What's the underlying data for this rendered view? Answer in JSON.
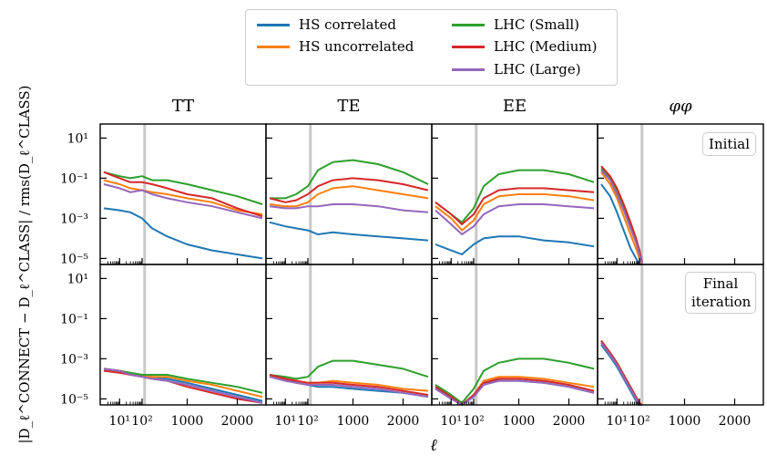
{
  "legend": {
    "items": [
      {
        "label": "HS correlated",
        "color": "#1f77b4"
      },
      {
        "label": "HS uncorrelated",
        "color": "#ff7f0e"
      },
      {
        "label": "LHC (Small)",
        "color": "#2ca02c"
      },
      {
        "label": "LHC (Medium)",
        "color": "#d62728"
      },
      {
        "label": "LHC (Large)",
        "color": "#9467bd"
      }
    ]
  },
  "columns": [
    "TT",
    "TE",
    "EE",
    "φφ"
  ],
  "row_labels": [
    "Initial",
    "Final iteration"
  ],
  "ylabel": "|D_ℓ^CONNECT − D_ℓ^CLASS| / rms(D_ℓ^CLASS)",
  "xlabel": "ℓ",
  "chart_data": {
    "type": "line",
    "layout_grid": "2 rows x 4 columns",
    "x_scale": "log below 100, linear above",
    "x_ticks": [
      "10¹",
      "10²",
      "1000",
      "2000"
    ],
    "y_scale": "log",
    "y_ticks": [
      "10⁻⁵",
      "10⁻³",
      "10⁻¹",
      "10¹"
    ],
    "ylim_log10": [
      -5.3,
      1.7
    ],
    "vertical_marker_ell": 150,
    "panels": [
      {
        "row": "Initial",
        "col": "TT",
        "x": [
          2,
          10,
          30,
          100,
          300,
          600,
          1000,
          1500,
          2000,
          2500
        ],
        "series": [
          {
            "name": "HS correlated",
            "log10y": [
              -2.5,
              -2.6,
              -2.7,
              -3.0,
              -3.5,
              -3.9,
              -4.3,
              -4.6,
              -4.8,
              -5.0
            ]
          },
          {
            "name": "HS uncorrelated",
            "log10y": [
              -1.1,
              -1.3,
              -1.5,
              -1.6,
              -1.7,
              -1.8,
              -2.0,
              -2.2,
              -2.6,
              -2.8
            ]
          },
          {
            "name": "LHC (Small)",
            "log10y": [
              -0.7,
              -0.9,
              -1.0,
              -0.9,
              -1.1,
              -1.1,
              -1.3,
              -1.6,
              -1.9,
              -2.3
            ]
          },
          {
            "name": "LHC (Medium)",
            "log10y": [
              -0.7,
              -1.0,
              -1.2,
              -1.2,
              -1.3,
              -1.5,
              -1.8,
              -2.0,
              -2.5,
              -2.9
            ]
          },
          {
            "name": "LHC (Large)",
            "log10y": [
              -1.3,
              -1.5,
              -1.7,
              -1.6,
              -1.8,
              -2.0,
              -2.2,
              -2.4,
              -2.7,
              -3.0
            ]
          }
        ]
      },
      {
        "row": "Initial",
        "col": "TE",
        "x": [
          2,
          10,
          30,
          100,
          300,
          600,
          1000,
          1500,
          2000,
          2500
        ],
        "series": [
          {
            "name": "HS correlated",
            "log10y": [
              -3.2,
              -3.4,
              -3.5,
              -3.6,
              -3.8,
              -3.7,
              -3.8,
              -3.9,
              -4.0,
              -4.1
            ]
          },
          {
            "name": "HS uncorrelated",
            "log10y": [
              -2.3,
              -2.4,
              -2.4,
              -2.2,
              -1.8,
              -1.5,
              -1.4,
              -1.6,
              -1.8,
              -2.0
            ]
          },
          {
            "name": "LHC (Small)",
            "log10y": [
              -2.0,
              -2.0,
              -1.8,
              -1.4,
              -0.6,
              -0.2,
              -0.1,
              -0.3,
              -0.7,
              -1.3
            ]
          },
          {
            "name": "LHC (Medium)",
            "log10y": [
              -2.0,
              -2.2,
              -2.1,
              -1.8,
              -1.4,
              -1.1,
              -1.0,
              -1.1,
              -1.3,
              -1.6
            ]
          },
          {
            "name": "LHC (Large)",
            "log10y": [
              -2.4,
              -2.5,
              -2.5,
              -2.4,
              -2.4,
              -2.3,
              -2.3,
              -2.4,
              -2.6,
              -2.7
            ]
          }
        ]
      },
      {
        "row": "Initial",
        "col": "EE",
        "x": [
          2,
          10,
          30,
          100,
          300,
          600,
          1000,
          1500,
          2000,
          2500
        ],
        "series": [
          {
            "name": "HS correlated",
            "log10y": [
              -4.3,
              -4.6,
              -4.8,
              -4.3,
              -4.0,
              -3.9,
              -3.9,
              -4.1,
              -4.2,
              -4.4
            ]
          },
          {
            "name": "HS uncorrelated",
            "log10y": [
              -2.4,
              -3.0,
              -3.6,
              -3.1,
              -2.3,
              -1.9,
              -1.8,
              -1.8,
              -1.9,
              -2.1
            ]
          },
          {
            "name": "LHC (Small)",
            "log10y": [
              -2.2,
              -2.8,
              -3.2,
              -2.5,
              -1.4,
              -0.8,
              -0.6,
              -0.6,
              -0.8,
              -1.2
            ]
          },
          {
            "name": "LHC (Medium)",
            "log10y": [
              -2.2,
              -2.8,
              -3.3,
              -2.8,
              -2.0,
              -1.6,
              -1.5,
              -1.5,
              -1.6,
              -1.7
            ]
          },
          {
            "name": "LHC (Large)",
            "log10y": [
              -2.6,
              -3.3,
              -3.8,
              -3.4,
              -2.8,
              -2.4,
              -2.3,
              -2.3,
              -2.4,
              -2.5
            ]
          }
        ]
      },
      {
        "row": "Initial",
        "col": "φφ",
        "x": [
          2,
          5,
          10,
          20,
          40,
          70,
          100,
          150
        ],
        "series": [
          {
            "name": "HS correlated",
            "log10y": [
              -1.3,
              -1.9,
              -2.7,
              -3.6,
              -4.5,
              -5.0,
              -5.3,
              -5.3
            ]
          },
          {
            "name": "HS uncorrelated",
            "log10y": [
              -0.7,
              -1.3,
              -2.0,
              -2.9,
              -3.8,
              -4.5,
              -5.0,
              -5.3
            ]
          },
          {
            "name": "LHC (Small)",
            "log10y": [
              -0.5,
              -1.0,
              -1.6,
              -2.4,
              -3.3,
              -4.0,
              -4.6,
              -5.2
            ]
          },
          {
            "name": "LHC (Medium)",
            "log10y": [
              -0.4,
              -0.9,
              -1.5,
              -2.3,
              -3.2,
              -4.0,
              -4.6,
              -5.2
            ]
          },
          {
            "name": "LHC (Large)",
            "log10y": [
              -0.6,
              -1.1,
              -1.8,
              -2.6,
              -3.5,
              -4.2,
              -4.8,
              -5.3
            ]
          }
        ]
      },
      {
        "row": "Final iteration",
        "col": "TT",
        "x": [
          2,
          10,
          30,
          100,
          300,
          600,
          1000,
          1500,
          2000,
          2500
        ],
        "series": [
          {
            "name": "HS correlated",
            "log10y": [
              -3.5,
              -3.6,
              -3.7,
              -3.8,
              -3.9,
              -4.0,
              -4.2,
              -4.5,
              -4.8,
              -5.1
            ]
          },
          {
            "name": "HS uncorrelated",
            "log10y": [
              -3.5,
              -3.6,
              -3.7,
              -3.8,
              -3.9,
              -3.9,
              -4.1,
              -4.3,
              -4.6,
              -4.9
            ]
          },
          {
            "name": "LHC (Small)",
            "log10y": [
              -3.5,
              -3.6,
              -3.7,
              -3.8,
              -3.8,
              -3.8,
              -4.0,
              -4.2,
              -4.4,
              -4.7
            ]
          },
          {
            "name": "LHC (Medium)",
            "log10y": [
              -3.6,
              -3.7,
              -3.8,
              -3.9,
              -4.0,
              -4.1,
              -4.4,
              -4.7,
              -5.0,
              -5.2
            ]
          },
          {
            "name": "LHC (Large)",
            "log10y": [
              -3.5,
              -3.6,
              -3.8,
              -3.9,
              -4.0,
              -4.1,
              -4.3,
              -4.6,
              -4.9,
              -5.2
            ]
          }
        ]
      },
      {
        "row": "Final iteration",
        "col": "TE",
        "x": [
          2,
          10,
          30,
          100,
          300,
          600,
          1000,
          1500,
          2000,
          2500
        ],
        "series": [
          {
            "name": "HS correlated",
            "log10y": [
              -3.8,
              -4.0,
              -4.2,
              -4.3,
              -4.4,
              -4.4,
              -4.5,
              -4.6,
              -4.7,
              -4.9
            ]
          },
          {
            "name": "HS uncorrelated",
            "log10y": [
              -3.8,
              -4.0,
              -4.1,
              -4.2,
              -4.2,
              -4.1,
              -4.2,
              -4.3,
              -4.5,
              -4.6
            ]
          },
          {
            "name": "LHC (Small)",
            "log10y": [
              -3.8,
              -3.9,
              -4.0,
              -3.9,
              -3.4,
              -3.1,
              -3.1,
              -3.3,
              -3.5,
              -3.9
            ]
          },
          {
            "name": "LHC (Medium)",
            "log10y": [
              -3.8,
              -4.0,
              -4.1,
              -4.2,
              -4.2,
              -4.2,
              -4.3,
              -4.4,
              -4.6,
              -4.8
            ]
          },
          {
            "name": "LHC (Large)",
            "log10y": [
              -3.9,
              -4.1,
              -4.2,
              -4.3,
              -4.3,
              -4.3,
              -4.4,
              -4.5,
              -4.7,
              -4.9
            ]
          }
        ]
      },
      {
        "row": "Final iteration",
        "col": "EE",
        "x": [
          2,
          10,
          30,
          100,
          300,
          600,
          1000,
          1500,
          2000,
          2500
        ],
        "series": [
          {
            "name": "HS correlated",
            "log10y": [
              -4.4,
              -4.9,
              -5.3,
              -4.8,
              -4.2,
              -4.1,
              -4.1,
              -4.2,
              -4.4,
              -4.7
            ]
          },
          {
            "name": "HS uncorrelated",
            "log10y": [
              -4.4,
              -4.9,
              -5.3,
              -4.8,
              -4.1,
              -3.9,
              -3.9,
              -4.0,
              -4.2,
              -4.4
            ]
          },
          {
            "name": "LHC (Small)",
            "log10y": [
              -4.3,
              -4.8,
              -5.2,
              -4.5,
              -3.6,
              -3.2,
              -3.0,
              -3.0,
              -3.2,
              -3.5
            ]
          },
          {
            "name": "LHC (Medium)",
            "log10y": [
              -4.4,
              -4.9,
              -5.3,
              -4.8,
              -4.2,
              -4.0,
              -4.0,
              -4.1,
              -4.3,
              -4.6
            ]
          },
          {
            "name": "LHC (Large)",
            "log10y": [
              -4.5,
              -5.0,
              -5.3,
              -4.9,
              -4.3,
              -4.1,
              -4.1,
              -4.2,
              -4.4,
              -4.7
            ]
          }
        ]
      },
      {
        "row": "Final iteration",
        "col": "φφ",
        "x": [
          2,
          5,
          10,
          20,
          40,
          70,
          100,
          150
        ],
        "series": [
          {
            "name": "HS correlated",
            "log10y": [
              -2.3,
              -2.9,
              -3.4,
              -4.0,
              -4.6,
              -5.1,
              -5.3,
              -5.3
            ]
          },
          {
            "name": "HS uncorrelated",
            "log10y": [
              -2.2,
              -2.8,
              -3.3,
              -3.9,
              -4.5,
              -5.0,
              -5.3,
              -5.3
            ]
          },
          {
            "name": "LHC (Small)",
            "log10y": [
              -2.1,
              -2.7,
              -3.2,
              -3.8,
              -4.4,
              -4.9,
              -5.2,
              -5.3
            ]
          },
          {
            "name": "LHC (Medium)",
            "log10y": [
              -2.1,
              -2.7,
              -3.2,
              -3.8,
              -4.4,
              -4.9,
              -5.2,
              -5.3
            ]
          },
          {
            "name": "LHC (Large)",
            "log10y": [
              -2.2,
              -2.8,
              -3.3,
              -3.9,
              -4.5,
              -5.0,
              -5.3,
              -5.3
            ]
          }
        ]
      }
    ]
  }
}
